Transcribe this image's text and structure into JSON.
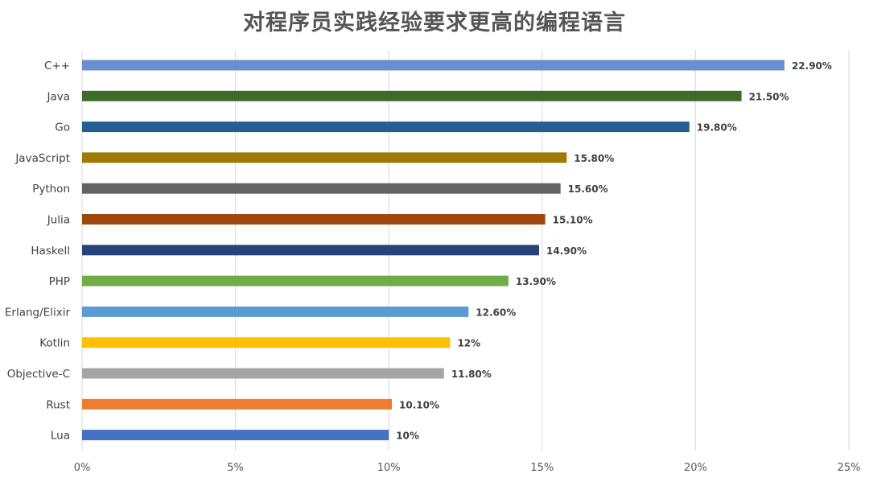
{
  "chart_data": {
    "type": "bar",
    "orientation": "horizontal",
    "title": "对程序员实践经验要求更高的编程语言",
    "xlabel": "",
    "ylabel": "",
    "xlim": [
      0,
      25
    ],
    "x_ticks": [
      "0%",
      "5%",
      "10%",
      "15%",
      "20%",
      "25%"
    ],
    "grid": "vertical",
    "categories": [
      "C++",
      "Java",
      "Go",
      "JavaScript",
      "Python",
      "Julia",
      "Haskell",
      "PHP",
      "Erlang/Elixir",
      "Kotlin",
      "Objective-C",
      "Rust",
      "Lua"
    ],
    "values": [
      22.9,
      21.5,
      19.8,
      15.8,
      15.6,
      15.1,
      14.9,
      13.9,
      12.6,
      12,
      11.8,
      10.1,
      10
    ],
    "data_labels": [
      "22.90%",
      "21.50%",
      "19.80%",
      "15.80%",
      "15.60%",
      "15.10%",
      "14.90%",
      "13.90%",
      "12.60%",
      "12%",
      "11.80%",
      "10.10%",
      "10%"
    ],
    "colors": [
      "#6a8fce",
      "#3f6b2a",
      "#255e91",
      "#9e7a05",
      "#636363",
      "#9e480e",
      "#264478",
      "#70ad47",
      "#5b9bd5",
      "#ffc000",
      "#a5a5a5",
      "#ed7d31",
      "#4472c4"
    ]
  }
}
